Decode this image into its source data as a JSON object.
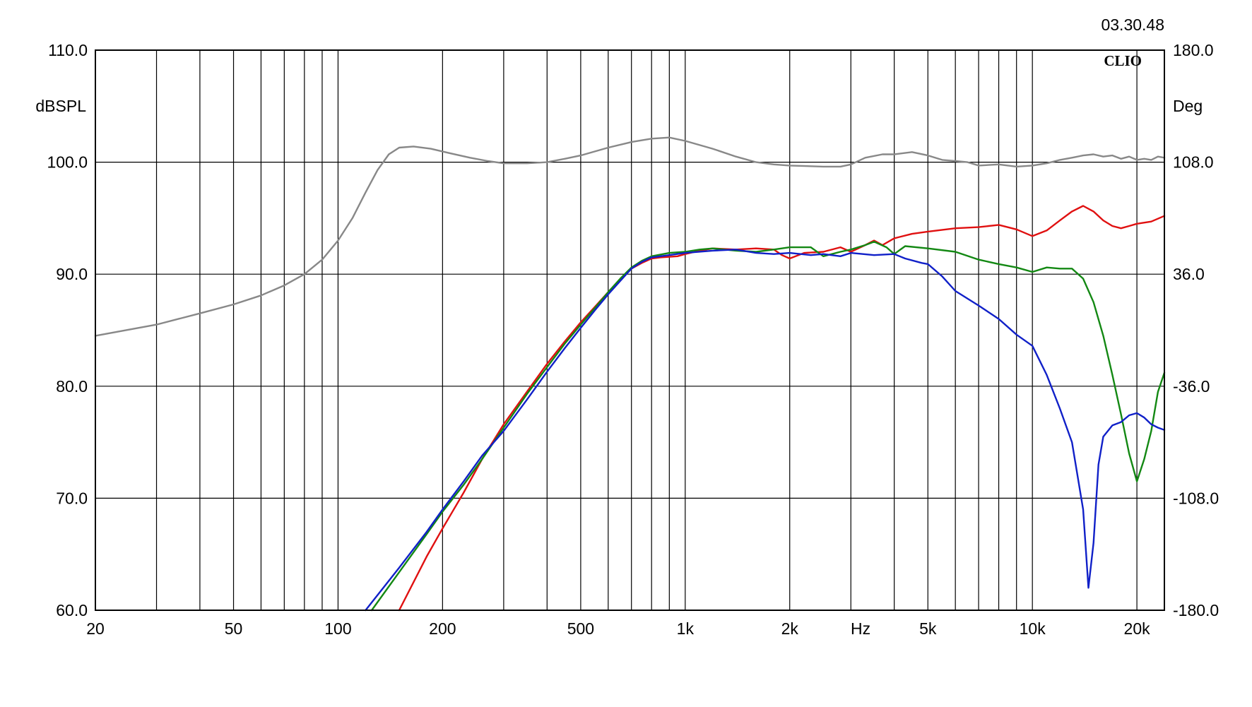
{
  "timestamp": "03.30.48",
  "brand": "CLIO",
  "chart_data": {
    "type": "line",
    "x_scale": "log",
    "xlim": [
      20,
      24000
    ],
    "ylim": [
      60,
      110
    ],
    "ylim_right": [
      -180,
      180
    ],
    "ylabel": "dBSPL",
    "ylabel_right": "Deg",
    "xlabel": "Hz",
    "grid": true,
    "x_ticks": [
      {
        "value": 20,
        "label": "20"
      },
      {
        "value": 50,
        "label": "50"
      },
      {
        "value": 100,
        "label": "100"
      },
      {
        "value": 200,
        "label": "200"
      },
      {
        "value": 500,
        "label": "500"
      },
      {
        "value": 1000,
        "label": "1k"
      },
      {
        "value": 2000,
        "label": "2k"
      },
      {
        "value": 5000,
        "label": "5k"
      },
      {
        "value": 10000,
        "label": "10k"
      },
      {
        "value": 20000,
        "label": "20k"
      }
    ],
    "y_ticks_left": [
      "110.0",
      "100.0",
      "90.0",
      "80.0",
      "70.0",
      "60.0"
    ],
    "y_ticks_right": [
      "180.0",
      "108.0",
      "36.0",
      "-36.0",
      "-108.0",
      "-180.0"
    ],
    "series": [
      {
        "color": "#888888",
        "points": [
          [
            20,
            84.5
          ],
          [
            30,
            85.5
          ],
          [
            40,
            86.5
          ],
          [
            50,
            87.3
          ],
          [
            60,
            88.1
          ],
          [
            70,
            89.0
          ],
          [
            80,
            90.0
          ],
          [
            90,
            91.3
          ],
          [
            100,
            93.0
          ],
          [
            110,
            95.0
          ],
          [
            120,
            97.3
          ],
          [
            130,
            99.3
          ],
          [
            140,
            100.7
          ],
          [
            150,
            101.3
          ],
          [
            165,
            101.4
          ],
          [
            185,
            101.2
          ],
          [
            210,
            100.8
          ],
          [
            240,
            100.4
          ],
          [
            270,
            100.1
          ],
          [
            300,
            99.9
          ],
          [
            350,
            99.9
          ],
          [
            400,
            100.0
          ],
          [
            450,
            100.3
          ],
          [
            500,
            100.6
          ],
          [
            600,
            101.3
          ],
          [
            700,
            101.8
          ],
          [
            800,
            102.1
          ],
          [
            900,
            102.2
          ],
          [
            1000,
            101.9
          ],
          [
            1200,
            101.2
          ],
          [
            1400,
            100.5
          ],
          [
            1600,
            100.0
          ],
          [
            1800,
            99.8
          ],
          [
            2000,
            99.7
          ],
          [
            2500,
            99.6
          ],
          [
            2800,
            99.6
          ],
          [
            3000,
            99.8
          ],
          [
            3300,
            100.4
          ],
          [
            3700,
            100.7
          ],
          [
            4000,
            100.7
          ],
          [
            4500,
            100.9
          ],
          [
            5000,
            100.6
          ],
          [
            5500,
            100.2
          ],
          [
            6000,
            100.1
          ],
          [
            6500,
            100.0
          ],
          [
            7000,
            99.7
          ],
          [
            8000,
            99.8
          ],
          [
            9000,
            99.6
          ],
          [
            10000,
            99.7
          ],
          [
            11000,
            99.9
          ],
          [
            12000,
            100.2
          ],
          [
            13000,
            100.4
          ],
          [
            14000,
            100.6
          ],
          [
            15000,
            100.7
          ],
          [
            16000,
            100.5
          ],
          [
            17000,
            100.6
          ],
          [
            18000,
            100.3
          ],
          [
            19000,
            100.5
          ],
          [
            20000,
            100.2
          ],
          [
            21000,
            100.3
          ],
          [
            22000,
            100.2
          ],
          [
            23000,
            100.5
          ],
          [
            24000,
            100.4
          ]
        ]
      },
      {
        "color": "#e01010",
        "points": [
          [
            150,
            60.0
          ],
          [
            180,
            64.8
          ],
          [
            200,
            67.3
          ],
          [
            230,
            70.5
          ],
          [
            260,
            73.5
          ],
          [
            300,
            76.6
          ],
          [
            350,
            79.5
          ],
          [
            400,
            82.0
          ],
          [
            450,
            84.0
          ],
          [
            500,
            85.7
          ],
          [
            550,
            87.1
          ],
          [
            600,
            88.4
          ],
          [
            650,
            89.5
          ],
          [
            700,
            90.5
          ],
          [
            750,
            91.0
          ],
          [
            800,
            91.4
          ],
          [
            850,
            91.5
          ],
          [
            950,
            91.6
          ],
          [
            1000,
            91.8
          ],
          [
            1100,
            92.1
          ],
          [
            1200,
            92.3
          ],
          [
            1400,
            92.2
          ],
          [
            1600,
            92.3
          ],
          [
            1800,
            92.2
          ],
          [
            1900,
            91.7
          ],
          [
            2000,
            91.4
          ],
          [
            2200,
            91.9
          ],
          [
            2500,
            92.0
          ],
          [
            2800,
            92.4
          ],
          [
            3000,
            92.0
          ],
          [
            3300,
            92.6
          ],
          [
            3500,
            93.0
          ],
          [
            3700,
            92.6
          ],
          [
            4000,
            93.2
          ],
          [
            4500,
            93.6
          ],
          [
            5000,
            93.8
          ],
          [
            6000,
            94.1
          ],
          [
            7000,
            94.2
          ],
          [
            8000,
            94.4
          ],
          [
            9000,
            94.0
          ],
          [
            10000,
            93.4
          ],
          [
            11000,
            93.9
          ],
          [
            12000,
            94.8
          ],
          [
            13000,
            95.6
          ],
          [
            14000,
            96.1
          ],
          [
            15000,
            95.6
          ],
          [
            16000,
            94.8
          ],
          [
            17000,
            94.3
          ],
          [
            18000,
            94.1
          ],
          [
            19000,
            94.3
          ],
          [
            20000,
            94.5
          ],
          [
            22000,
            94.7
          ],
          [
            24000,
            95.2
          ]
        ]
      },
      {
        "color": "#138813",
        "points": [
          [
            125,
            60.0
          ],
          [
            150,
            63.4
          ],
          [
            180,
            66.8
          ],
          [
            200,
            68.8
          ],
          [
            230,
            71.2
          ],
          [
            260,
            73.5
          ],
          [
            300,
            76.3
          ],
          [
            350,
            79.3
          ],
          [
            400,
            81.7
          ],
          [
            450,
            83.8
          ],
          [
            500,
            85.5
          ],
          [
            550,
            87.0
          ],
          [
            600,
            88.4
          ],
          [
            650,
            89.6
          ],
          [
            700,
            90.6
          ],
          [
            750,
            91.2
          ],
          [
            800,
            91.6
          ],
          [
            900,
            91.9
          ],
          [
            1000,
            92.0
          ],
          [
            1100,
            92.2
          ],
          [
            1200,
            92.3
          ],
          [
            1400,
            92.1
          ],
          [
            1600,
            92.0
          ],
          [
            1800,
            92.2
          ],
          [
            2000,
            92.4
          ],
          [
            2300,
            92.4
          ],
          [
            2500,
            91.6
          ],
          [
            2800,
            92.0
          ],
          [
            3000,
            92.2
          ],
          [
            3300,
            92.6
          ],
          [
            3500,
            92.9
          ],
          [
            3800,
            92.4
          ],
          [
            4000,
            91.8
          ],
          [
            4300,
            92.5
          ],
          [
            5000,
            92.3
          ],
          [
            6000,
            92.0
          ],
          [
            7000,
            91.3
          ],
          [
            8000,
            90.9
          ],
          [
            9000,
            90.6
          ],
          [
            10000,
            90.2
          ],
          [
            11000,
            90.6
          ],
          [
            12000,
            90.5
          ],
          [
            13000,
            90.5
          ],
          [
            14000,
            89.6
          ],
          [
            15000,
            87.5
          ],
          [
            16000,
            84.5
          ],
          [
            17000,
            81.0
          ],
          [
            18000,
            77.5
          ],
          [
            19000,
            74.0
          ],
          [
            20000,
            71.5
          ],
          [
            21000,
            73.5
          ],
          [
            22000,
            76.0
          ],
          [
            23000,
            79.5
          ],
          [
            24000,
            81.2
          ]
        ]
      },
      {
        "color": "#1020c8",
        "points": [
          [
            120,
            60.0
          ],
          [
            150,
            63.8
          ],
          [
            180,
            67.0
          ],
          [
            200,
            69.0
          ],
          [
            230,
            71.5
          ],
          [
            260,
            73.8
          ],
          [
            300,
            76.0
          ],
          [
            350,
            78.8
          ],
          [
            400,
            81.3
          ],
          [
            450,
            83.4
          ],
          [
            500,
            85.2
          ],
          [
            550,
            86.8
          ],
          [
            600,
            88.2
          ],
          [
            650,
            89.4
          ],
          [
            700,
            90.5
          ],
          [
            750,
            91.1
          ],
          [
            800,
            91.5
          ],
          [
            900,
            91.7
          ],
          [
            1000,
            91.9
          ],
          [
            1200,
            92.1
          ],
          [
            1400,
            92.2
          ],
          [
            1600,
            91.9
          ],
          [
            1800,
            91.8
          ],
          [
            2000,
            91.9
          ],
          [
            2300,
            91.7
          ],
          [
            2500,
            91.8
          ],
          [
            2800,
            91.6
          ],
          [
            3000,
            91.9
          ],
          [
            3500,
            91.7
          ],
          [
            4000,
            91.8
          ],
          [
            4300,
            91.4
          ],
          [
            4800,
            91.0
          ],
          [
            5000,
            90.9
          ],
          [
            5500,
            89.8
          ],
          [
            6000,
            88.5
          ],
          [
            7000,
            87.2
          ],
          [
            8000,
            86.0
          ],
          [
            9000,
            84.6
          ],
          [
            10000,
            83.6
          ],
          [
            11000,
            81.0
          ],
          [
            12000,
            78.0
          ],
          [
            13000,
            75.0
          ],
          [
            14000,
            69.0
          ],
          [
            14500,
            62.0
          ],
          [
            15000,
            66.0
          ],
          [
            15500,
            73.0
          ],
          [
            16000,
            75.5
          ],
          [
            17000,
            76.5
          ],
          [
            18000,
            76.8
          ],
          [
            19000,
            77.4
          ],
          [
            20000,
            77.6
          ],
          [
            21000,
            77.2
          ],
          [
            22000,
            76.6
          ],
          [
            23000,
            76.3
          ],
          [
            24000,
            76.1
          ]
        ]
      }
    ]
  }
}
